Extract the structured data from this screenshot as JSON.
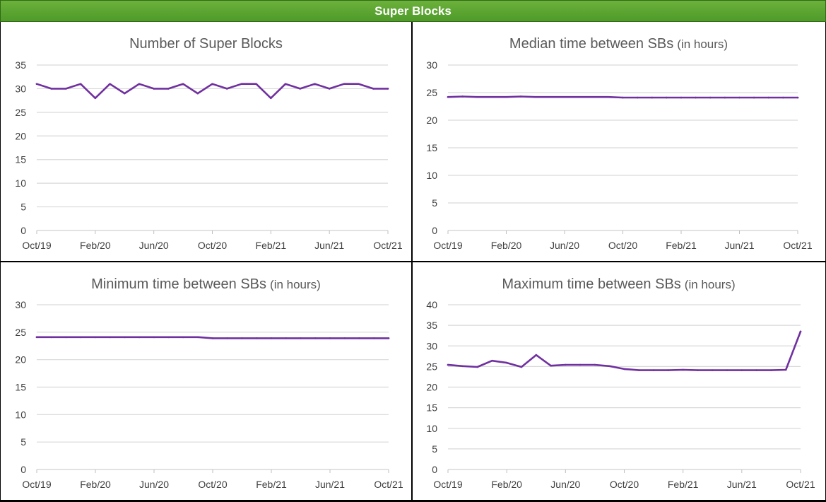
{
  "header": {
    "title": "Super Blocks"
  },
  "colors": {
    "line": "#7030a0",
    "grid": "#d9d9d9",
    "banner": "#5aa332"
  },
  "chart_data": [
    {
      "type": "line",
      "title": "Number of Super Blocks",
      "title_unit": "",
      "xlabel": "",
      "ylabel": "",
      "ylim": [
        0,
        35
      ],
      "yticks": [
        "0",
        "5",
        "10",
        "15",
        "20",
        "25",
        "30",
        "35"
      ],
      "xticks": [
        "Oct/19",
        "Feb/20",
        "Jun/20",
        "Oct/20",
        "Feb/21",
        "Jun/21",
        "Oct/21"
      ],
      "x": [
        "Oct/19",
        "Nov/19",
        "Dec/19",
        "Jan/20",
        "Feb/20",
        "Mar/20",
        "Apr/20",
        "May/20",
        "Jun/20",
        "Jul/20",
        "Aug/20",
        "Sep/20",
        "Oct/20",
        "Nov/20",
        "Dec/20",
        "Jan/21",
        "Feb/21",
        "Mar/21",
        "Apr/21",
        "May/21",
        "Jun/21",
        "Jul/21",
        "Aug/21",
        "Sep/21",
        "Oct/21"
      ],
      "values": [
        31,
        30,
        30,
        31,
        28,
        31,
        29,
        31,
        30,
        30,
        31,
        29,
        31,
        30,
        31,
        31,
        28,
        31,
        30,
        31,
        30,
        31,
        31,
        30,
        30
      ]
    },
    {
      "type": "line",
      "title": "Median time between SBs",
      "title_unit": "(in hours)",
      "xlabel": "",
      "ylabel": "",
      "ylim": [
        0,
        30
      ],
      "yticks": [
        "0",
        "5",
        "10",
        "15",
        "20",
        "25",
        "30"
      ],
      "xticks": [
        "Oct/19",
        "Feb/20",
        "Jun/20",
        "Oct/20",
        "Feb/21",
        "Jun/21",
        "Oct/21"
      ],
      "x": [
        "Oct/19",
        "Nov/19",
        "Dec/19",
        "Jan/20",
        "Feb/20",
        "Mar/20",
        "Apr/20",
        "May/20",
        "Jun/20",
        "Jul/20",
        "Aug/20",
        "Sep/20",
        "Oct/20",
        "Nov/20",
        "Dec/20",
        "Jan/21",
        "Feb/21",
        "Mar/21",
        "Apr/21",
        "May/21",
        "Jun/21",
        "Jul/21",
        "Aug/21",
        "Sep/21",
        "Oct/21"
      ],
      "values": [
        24.2,
        24.3,
        24.2,
        24.2,
        24.2,
        24.3,
        24.2,
        24.2,
        24.2,
        24.2,
        24.2,
        24.2,
        24.1,
        24.1,
        24.1,
        24.1,
        24.1,
        24.1,
        24.1,
        24.1,
        24.1,
        24.1,
        24.1,
        24.1,
        24.1
      ]
    },
    {
      "type": "line",
      "title": "Minimum time between SBs",
      "title_unit": "(in hours)",
      "xlabel": "",
      "ylabel": "",
      "ylim": [
        0,
        30
      ],
      "yticks": [
        "0",
        "5",
        "10",
        "15",
        "20",
        "25",
        "30"
      ],
      "xticks": [
        "Oct/19",
        "Feb/20",
        "Jun/20",
        "Oct/20",
        "Feb/21",
        "Jun/21",
        "Oct/21"
      ],
      "x": [
        "Oct/19",
        "Nov/19",
        "Dec/19",
        "Jan/20",
        "Feb/20",
        "Mar/20",
        "Apr/20",
        "May/20",
        "Jun/20",
        "Jul/20",
        "Aug/20",
        "Sep/20",
        "Oct/20",
        "Nov/20",
        "Dec/20",
        "Jan/21",
        "Feb/21",
        "Mar/21",
        "Apr/21",
        "May/21",
        "Jun/21",
        "Jul/21",
        "Aug/21",
        "Sep/21",
        "Oct/21"
      ],
      "values": [
        24.1,
        24.1,
        24.1,
        24.1,
        24.1,
        24.1,
        24.1,
        24.1,
        24.1,
        24.1,
        24.1,
        24.1,
        23.9,
        23.9,
        23.9,
        23.9,
        23.9,
        23.9,
        23.9,
        23.9,
        23.9,
        23.9,
        23.9,
        23.9,
        23.9
      ]
    },
    {
      "type": "line",
      "title": "Maximum time  between SBs",
      "title_unit": "(in hours)",
      "xlabel": "",
      "ylabel": "",
      "ylim": [
        0,
        40
      ],
      "yticks": [
        "0",
        "5",
        "10",
        "15",
        "20",
        "25",
        "30",
        "35",
        "40"
      ],
      "xticks": [
        "Oct/19",
        "Feb/20",
        "Jun/20",
        "Oct/20",
        "Feb/21",
        "Jun/21",
        "Oct/21"
      ],
      "x": [
        "Oct/19",
        "Nov/19",
        "Dec/19",
        "Jan/20",
        "Feb/20",
        "Mar/20",
        "Apr/20",
        "May/20",
        "Jun/20",
        "Jul/20",
        "Aug/20",
        "Sep/20",
        "Oct/20",
        "Nov/20",
        "Dec/20",
        "Jan/21",
        "Feb/21",
        "Mar/21",
        "Apr/21",
        "May/21",
        "Jun/21",
        "Jul/21",
        "Aug/21",
        "Sep/21",
        "Oct/21"
      ],
      "values": [
        25.4,
        25.1,
        24.9,
        26.4,
        25.9,
        24.9,
        27.8,
        25.2,
        25.4,
        25.4,
        25.4,
        25.1,
        24.4,
        24.1,
        24.1,
        24.1,
        24.2,
        24.1,
        24.1,
        24.1,
        24.1,
        24.1,
        24.1,
        24.2,
        33.5
      ]
    }
  ]
}
